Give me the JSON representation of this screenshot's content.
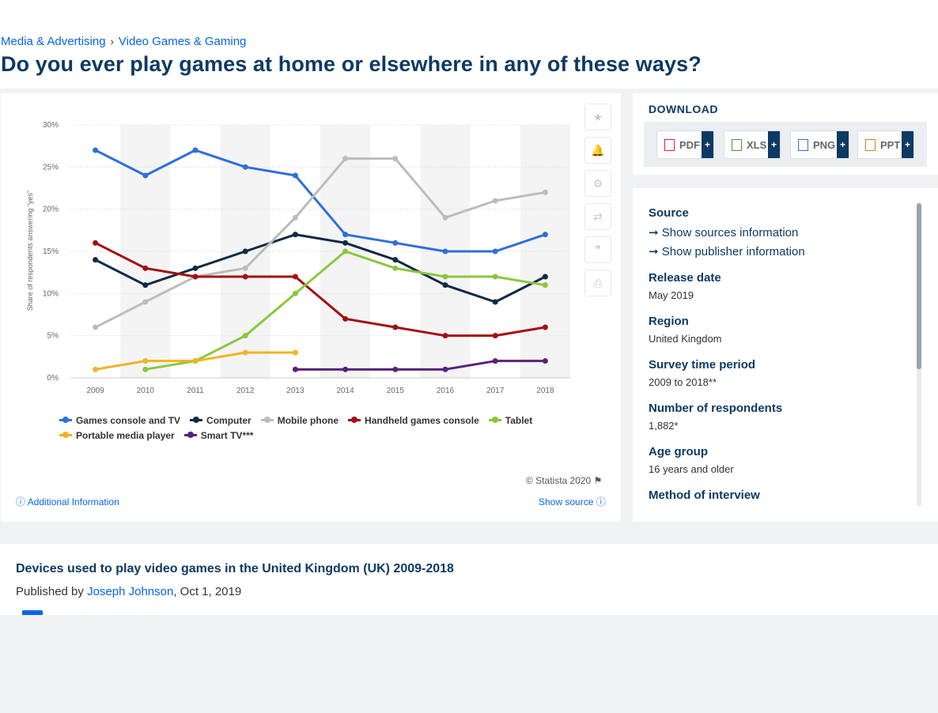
{
  "breadcrumb": [
    "Media & Advertising",
    "Video Games & Gaming"
  ],
  "breadcrumb_sep": "›",
  "page_title": "Do you ever play games at home or elsewhere in any of these ways?",
  "tools": {
    "favorite": "★",
    "notify": "🔔",
    "settings": "⚙",
    "share": "⇄",
    "cite": "❞",
    "print": "⎙"
  },
  "copyright": "© Statista 2020",
  "additional_info": "Additional Information",
  "show_source": "Show source",
  "download": {
    "label": "DOWNLOAD",
    "formats": [
      "PDF",
      "XLS",
      "PNG",
      "PPT"
    ],
    "plus": "+"
  },
  "info": {
    "source_label": "Source",
    "show_sources": "Show sources information",
    "show_publisher": "Show publisher information",
    "release_label": "Release date",
    "release_value": "May 2019",
    "region_label": "Region",
    "region_value": "United Kingdom",
    "survey_label": "Survey time period",
    "survey_value": "2009 to 2018**",
    "respondents_label": "Number of respondents",
    "respondents_value": "1,882*",
    "age_label": "Age group",
    "age_value": "16 years and older",
    "method_label": "Method of interview"
  },
  "description": {
    "title": "Devices used to play video games in the United Kingdom (UK) 2009-2018",
    "published_prefix": "Published by ",
    "author": "Joseph Johnson",
    "date": ", Oct 1, 2019"
  },
  "chart_data": {
    "type": "line",
    "ylabel": "Share of respondents answering \"yes\"",
    "x": [
      "2009",
      "2010",
      "2011",
      "2012",
      "2013",
      "2014",
      "2015",
      "2016",
      "2017",
      "2018"
    ],
    "ylim": [
      0,
      30
    ],
    "yticks": [
      "0%",
      "5%",
      "10%",
      "15%",
      "20%",
      "25%",
      "30%"
    ],
    "grid": true,
    "legend_position": "bottom",
    "series": [
      {
        "name": "Games console and TV",
        "color": "#2f6fd8",
        "values": [
          27,
          24,
          27,
          25,
          24,
          17,
          16,
          15,
          15,
          17
        ]
      },
      {
        "name": "Computer",
        "color": "#0f2a44",
        "values": [
          14,
          11,
          13,
          15,
          17,
          16,
          14,
          11,
          9,
          12
        ]
      },
      {
        "name": "Mobile phone",
        "color": "#bcbcbc",
        "values": [
          6,
          9,
          12,
          13,
          19,
          26,
          26,
          19,
          21,
          22
        ]
      },
      {
        "name": "Handheld games console",
        "color": "#a30f12",
        "values": [
          16,
          13,
          12,
          12,
          12,
          7,
          6,
          5,
          5,
          6
        ]
      },
      {
        "name": "Tablet",
        "color": "#8cc63f",
        "values": [
          null,
          1,
          2,
          5,
          10,
          15,
          13,
          12,
          12,
          11
        ]
      },
      {
        "name": "Portable media player",
        "color": "#f0b323",
        "values": [
          1,
          2,
          2,
          3,
          3,
          null,
          null,
          null,
          null,
          null
        ]
      },
      {
        "name": "Smart TV***",
        "color": "#5a2178",
        "values": [
          null,
          null,
          null,
          null,
          1,
          1,
          1,
          1,
          2,
          2
        ]
      }
    ]
  }
}
